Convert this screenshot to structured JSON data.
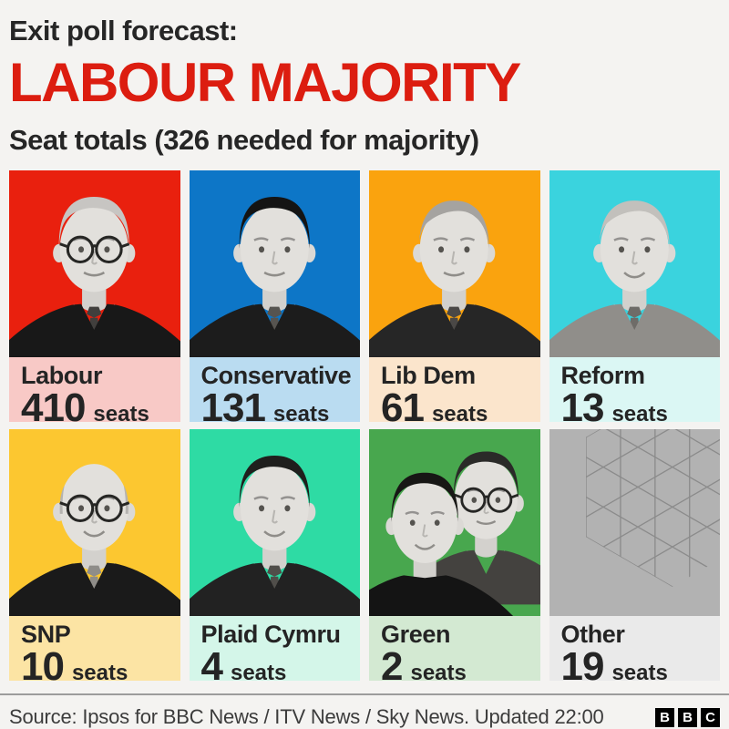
{
  "header": {
    "kicker": "Exit poll forecast:",
    "headline": "LABOUR MAJORITY",
    "headline_color": "#dc1d10",
    "subtitle": "Seat totals (326 needed for majority)"
  },
  "parties": [
    {
      "name": "Labour",
      "seats": 410,
      "unit": "seats",
      "photo_bg": "#e9200e",
      "label_bg": "#f8c9c6"
    },
    {
      "name": "Conservative",
      "seats": 131,
      "unit": "seats",
      "photo_bg": "#0d76c7",
      "label_bg": "#badcf1"
    },
    {
      "name": "Lib Dem",
      "seats": 61,
      "unit": "seats",
      "photo_bg": "#faa30e",
      "label_bg": "#fbe5cc"
    },
    {
      "name": "Reform",
      "seats": 13,
      "unit": "seats",
      "photo_bg": "#3ad3de",
      "label_bg": "#dbf7f4"
    },
    {
      "name": "SNP",
      "seats": 10,
      "unit": "seats",
      "photo_bg": "#fcc730",
      "label_bg": "#fce4a4"
    },
    {
      "name": "Plaid Cymru",
      "seats": 4,
      "unit": "seats",
      "photo_bg": "#2edba4",
      "label_bg": "#d4f6e9"
    },
    {
      "name": "Green",
      "seats": 2,
      "unit": "seats",
      "photo_bg": "#48a74e",
      "label_bg": "#d3e9d2"
    },
    {
      "name": "Other",
      "seats": 19,
      "unit": "seats",
      "photo_bg": "#b2b2b2",
      "label_bg": "#eaeaea"
    }
  ],
  "footer": {
    "source": "Source: Ipsos for BBC News / ITV News / Sky News. Updated 22:00",
    "logo_letters": [
      "B",
      "B",
      "C"
    ]
  },
  "chart_data": {
    "type": "table",
    "title": "LABOUR MAJORITY",
    "subtitle": "Exit poll forecast: Seat totals (326 needed for majority)",
    "categories": [
      "Labour",
      "Conservative",
      "Lib Dem",
      "Reform",
      "SNP",
      "Plaid Cymru",
      "Green",
      "Other"
    ],
    "values": [
      410,
      131,
      61,
      13,
      10,
      4,
      2,
      19
    ],
    "majority_threshold": 326,
    "layout": "4x2 grid of leader portrait cards with seat totals"
  }
}
